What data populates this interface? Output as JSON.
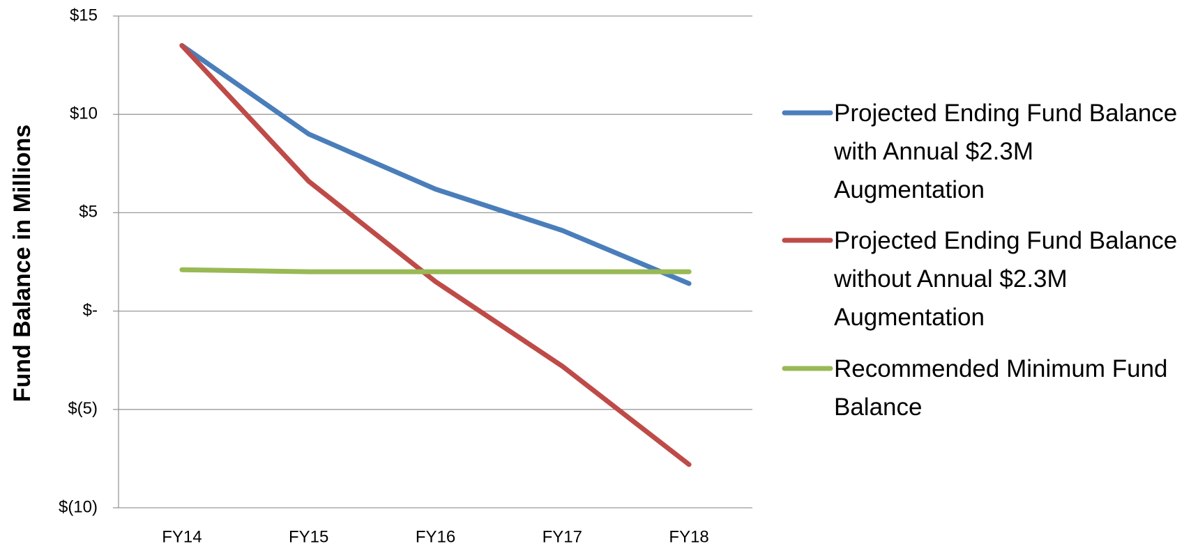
{
  "chart_data": {
    "type": "line",
    "y_label": "Fund Balance in Millions",
    "categories": [
      "FY14",
      "FY15",
      "FY16",
      "FY17",
      "FY18"
    ],
    "series": [
      {
        "name": "Projected Ending Fund Balance with Annual $2.3M Augmentation",
        "color": "#4a7ebb",
        "values": [
          13.5,
          9.0,
          6.2,
          4.1,
          1.4
        ]
      },
      {
        "name": "Projected Ending Fund Balance without Annual $2.3M Augmentation",
        "color": "#be4b48",
        "values": [
          13.5,
          6.6,
          1.5,
          -2.8,
          -7.8
        ]
      },
      {
        "name": "Recommended Minimum Fund Balance",
        "color": "#98b954",
        "values": [
          2.1,
          2.0,
          2.0,
          2.0,
          2.0
        ]
      }
    ],
    "ylim": [
      -10,
      15
    ],
    "yticks": [
      {
        "value": -10,
        "label": "$(10)"
      },
      {
        "value": -5,
        "label": "$(5)"
      },
      {
        "value": 0,
        "label": "$-"
      },
      {
        "value": 5,
        "label": "$5"
      },
      {
        "value": 10,
        "label": "$10"
      },
      {
        "value": 15,
        "label": "$15"
      }
    ],
    "grid": true,
    "legend": "right"
  }
}
